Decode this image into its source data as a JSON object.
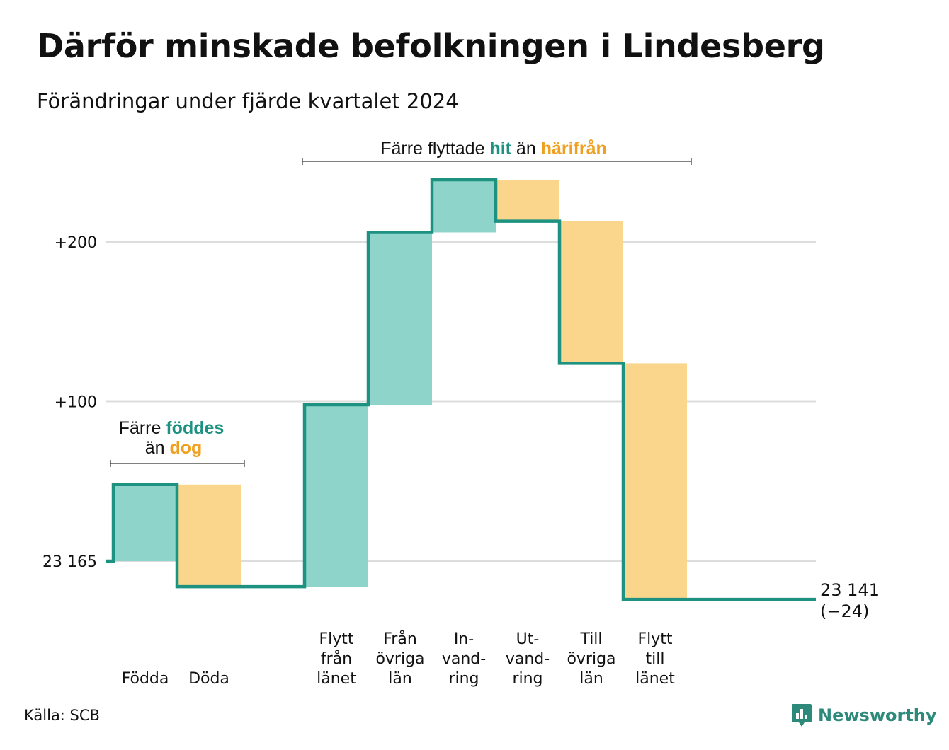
{
  "title": "Därför minskade befolkningen i Lindesberg",
  "subtitle": "Förändringar under fjärde kvartalet 2024",
  "source": "Källa: SCB",
  "logo": {
    "text": "Newsworthy",
    "icon": "newsworthy-chart-bubble-icon"
  },
  "colors": {
    "inflow": "#8fd4ca",
    "outflow": "#fad58c",
    "line": "#1d9281",
    "inflow_text": "#1d9281",
    "outflow_text": "#f0a020",
    "grid": "#dddddd"
  },
  "annotations": {
    "natural": {
      "line1_prefix": "Färre ",
      "line1_highlight": "föddes",
      "line2_prefix": "än ",
      "line2_highlight": "dog"
    },
    "migration": {
      "prefix": "Färre flyttade ",
      "highlight1": "hit",
      "middle": " än ",
      "highlight2": "härifrån"
    }
  },
  "chart_data": {
    "type": "waterfall",
    "title": "Därför minskade befolkningen i Lindesberg",
    "subtitle": "Förändringar under fjärde kvartalet 2024",
    "baseline": 23165,
    "y_tick_labels": [
      "23 165",
      "+100",
      "+200"
    ],
    "y_tick_values": [
      0,
      100,
      200
    ],
    "ylim": [
      -30,
      240
    ],
    "grid": true,
    "categories": [
      {
        "label": [
          "Födda"
        ],
        "change": 48,
        "kind": "inflow"
      },
      {
        "label": [
          "Döda"
        ],
        "change": -64,
        "kind": "outflow"
      },
      {
        "label": [],
        "change": 0,
        "kind": "spacer"
      },
      {
        "label": [
          "Flytt",
          "från",
          "länet"
        ],
        "change": 114,
        "kind": "inflow"
      },
      {
        "label": [
          "Från",
          "övriga",
          "län"
        ],
        "change": 108,
        "kind": "inflow"
      },
      {
        "label": [
          "In-",
          "vand-",
          "ring"
        ],
        "change": 33,
        "kind": "inflow"
      },
      {
        "label": [
          "Ut-",
          "vand-",
          "ring"
        ],
        "change": -26,
        "kind": "outflow"
      },
      {
        "label": [
          "Till",
          "övriga",
          "län"
        ],
        "change": -89,
        "kind": "outflow"
      },
      {
        "label": [
          "Flytt",
          "till",
          "länet"
        ],
        "change": -148,
        "kind": "outflow"
      }
    ],
    "end_value_label": "23 141",
    "end_change_label": "(−24)",
    "end_value": 23141,
    "net_change": -24
  }
}
